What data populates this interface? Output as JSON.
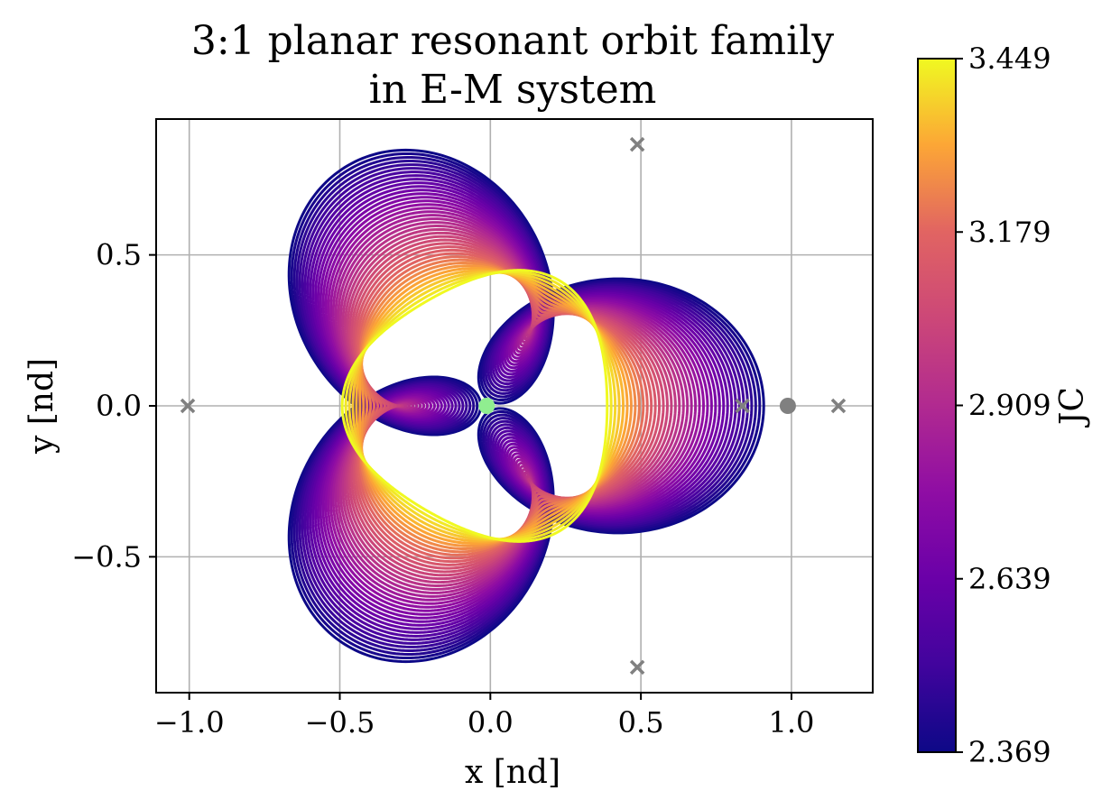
{
  "chart_data": {
    "type": "line",
    "title": "3:1 planar resonant orbit family",
    "subtitle": "in E-M system",
    "xlabel": "x [nd]",
    "ylabel": "y [nd]",
    "xlim": [
      -1.11,
      1.27
    ],
    "ylim": [
      -0.95,
      0.95
    ],
    "xticks": [
      -1.0,
      -0.5,
      0.0,
      0.5,
      1.0
    ],
    "xtick_labels": [
      "−1.0",
      "−0.5",
      "0.0",
      "0.5",
      "1.0"
    ],
    "yticks": [
      -0.5,
      0.0,
      0.5
    ],
    "ytick_labels": [
      "−0.5",
      "0.0",
      "0.5"
    ],
    "grid": true,
    "colormap": "plasma",
    "colorbar": {
      "label": "JC",
      "min": 2.369,
      "max": 3.449,
      "ticks": [
        2.369,
        2.639,
        2.909,
        3.179,
        3.449
      ],
      "tick_labels": [
        "2.369",
        "2.639",
        "2.909",
        "3.179",
        "3.449"
      ]
    },
    "family": {
      "orbit_count": 40,
      "jc_range": [
        2.369,
        3.449
      ],
      "resonance": "3:1",
      "lobes": 3,
      "inner_radius_range": [
        0.02,
        0.48
      ],
      "outer_radius_range": [
        0.4,
        0.92
      ]
    },
    "markers": [
      {
        "name": "L1",
        "x": 0.837,
        "y": 0.0,
        "symbol": "x",
        "color": "#808080"
      },
      {
        "name": "L2",
        "x": 1.156,
        "y": 0.0,
        "symbol": "x",
        "color": "#808080"
      },
      {
        "name": "L3",
        "x": -1.005,
        "y": 0.0,
        "symbol": "x",
        "color": "#808080"
      },
      {
        "name": "L4",
        "x": 0.488,
        "y": 0.866,
        "symbol": "x",
        "color": "#808080"
      },
      {
        "name": "L5",
        "x": 0.488,
        "y": -0.866,
        "symbol": "x",
        "color": "#808080"
      },
      {
        "name": "Moon",
        "x": 0.988,
        "y": 0.0,
        "symbol": "o",
        "color": "#808080"
      },
      {
        "name": "Earth",
        "x": -0.012,
        "y": 0.0,
        "symbol": "o",
        "color": "#90ee90"
      }
    ]
  }
}
